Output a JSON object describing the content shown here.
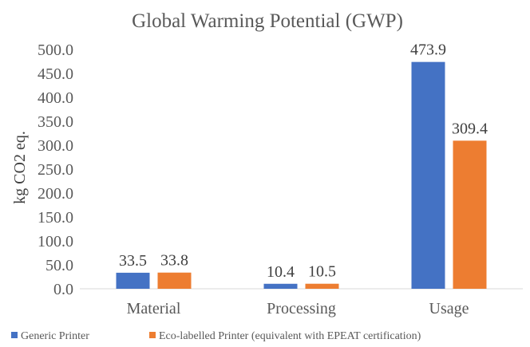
{
  "chart_data": {
    "type": "bar",
    "title": "Global Warming Potential (GWP)",
    "xlabel": "",
    "ylabel": "kg CO2 eq.",
    "categories": [
      "Material",
      "Processing",
      "Usage"
    ],
    "series": [
      {
        "name": "Generic Printer",
        "values": [
          33.5,
          10.4,
          473.9
        ],
        "labels": [
          "33.5",
          "10.4",
          "473.9"
        ],
        "color": "#4472C4"
      },
      {
        "name": "Eco-labelled Printer (equivalent with EPEAT certification)",
        "values": [
          33.8,
          10.5,
          309.4
        ],
        "labels": [
          "33.8",
          "10.5",
          "309.4"
        ],
        "color": "#ED7D31"
      }
    ],
    "ylim": [
      0,
      500
    ],
    "yticks": [
      "0.0",
      "50.0",
      "100.0",
      "150.0",
      "200.0",
      "250.0",
      "300.0",
      "350.0",
      "400.0",
      "450.0",
      "500.0"
    ],
    "ytick_values": [
      0,
      50,
      100,
      150,
      200,
      250,
      300,
      350,
      400,
      450,
      500
    ],
    "grid": false,
    "legend": "bottom",
    "data_labels": true
  }
}
